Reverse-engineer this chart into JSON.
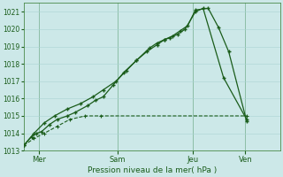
{
  "xlabel": "Pression niveau de la mer( hPa )",
  "background_color": "#cce8e8",
  "grid_color": "#aad4d4",
  "line_color": "#1a5c1a",
  "spine_color": "#4a8a4a",
  "ylim": [
    1013,
    1021.5
  ],
  "yticks": [
    1013,
    1014,
    1015,
    1016,
    1017,
    1018,
    1019,
    1020,
    1021
  ],
  "day_labels": [
    "Mer",
    "Sam",
    "Jeu",
    "Ven"
  ],
  "vline_positions": [
    0.06,
    0.365,
    0.66,
    0.865
  ],
  "xlim": [
    0.0,
    1.0
  ],
  "series1_x": [
    0.0,
    0.03,
    0.05,
    0.07,
    0.1,
    0.13,
    0.17,
    0.2,
    0.25,
    0.28,
    0.31,
    0.35,
    0.39,
    0.44,
    0.49,
    0.52,
    0.55,
    0.57,
    0.6,
    0.63,
    0.67,
    0.7,
    0.78,
    0.87
  ],
  "series1_y": [
    1013.3,
    1013.8,
    1014.0,
    1014.1,
    1014.5,
    1014.8,
    1015.0,
    1015.2,
    1015.6,
    1015.9,
    1016.1,
    1016.8,
    1017.5,
    1018.2,
    1018.9,
    1019.2,
    1019.4,
    1019.5,
    1019.7,
    1020.0,
    1021.0,
    1021.2,
    1017.2,
    1014.8
  ],
  "series2_x": [
    0.0,
    0.04,
    0.08,
    0.12,
    0.17,
    0.22,
    0.27,
    0.31,
    0.36,
    0.4,
    0.44,
    0.48,
    0.52,
    0.55,
    0.58,
    0.61,
    0.64,
    0.67,
    0.72,
    0.76,
    0.8,
    0.87
  ],
  "series2_y": [
    1013.3,
    1014.0,
    1014.6,
    1015.0,
    1015.4,
    1015.7,
    1016.1,
    1016.5,
    1017.0,
    1017.6,
    1018.2,
    1018.7,
    1019.1,
    1019.4,
    1019.6,
    1019.9,
    1020.2,
    1021.1,
    1021.2,
    1020.1,
    1018.7,
    1014.7
  ],
  "series3_x": [
    0.0,
    0.04,
    0.08,
    0.13,
    0.18,
    0.24,
    0.3,
    0.87
  ],
  "series3_y": [
    1013.3,
    1013.7,
    1014.0,
    1014.4,
    1014.8,
    1015.0,
    1015.0,
    1015.0
  ]
}
